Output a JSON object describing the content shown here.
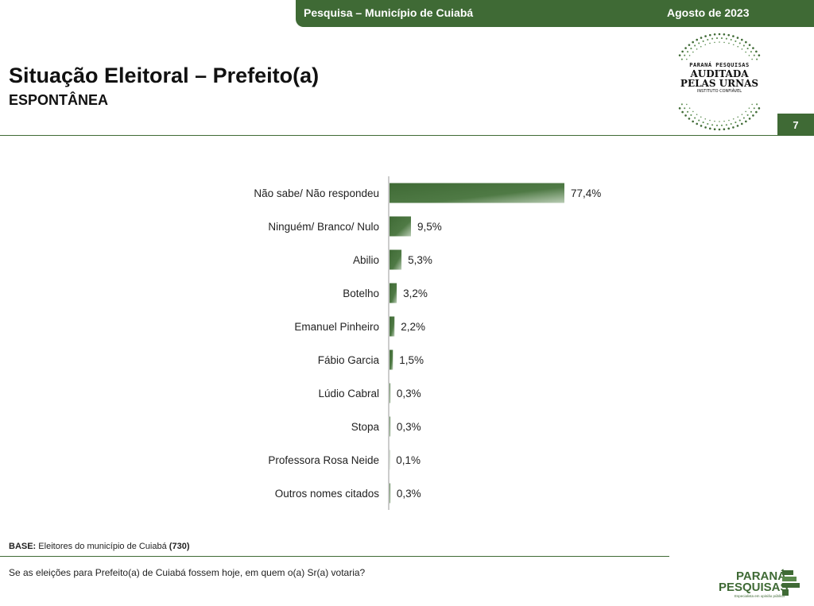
{
  "header": {
    "survey_label": "Pesquisa – Município de Cuiabá",
    "date": "Agosto de 2023",
    "page_number": "7"
  },
  "title": "Situação Eleitoral – Prefeito(a)",
  "subtitle": "ESPONTÂNEA",
  "seal": {
    "line1": "PARANÁ PESQUISAS",
    "line2": "AUDITADA",
    "line3": "PELAS URNAS",
    "line4": "INSTITUTO CONFIÁVEL"
  },
  "colors": {
    "brand_green": "#3f6a35",
    "bar_light": "#ffffff"
  },
  "chart_data": {
    "type": "bar",
    "orientation": "horizontal",
    "title": "",
    "xlabel": "",
    "ylabel": "",
    "xlim": [
      0,
      100
    ],
    "grid": false,
    "categories": [
      "Não sabe/ Não respondeu",
      "Ninguém/ Branco/ Nulo",
      "Abilio",
      "Botelho",
      "Emanuel Pinheiro",
      "Fábio Garcia",
      "Lúdio Cabral",
      "Stopa",
      "Professora Rosa Neide",
      "Outros nomes citados"
    ],
    "values": [
      77.4,
      9.5,
      5.3,
      3.2,
      2.2,
      1.5,
      0.3,
      0.3,
      0.1,
      0.3
    ],
    "value_labels": [
      "77,4%",
      "9,5%",
      "5,3%",
      "3,2%",
      "2,2%",
      "1,5%",
      "0,3%",
      "0,3%",
      "0,1%",
      "0,3%"
    ]
  },
  "footer": {
    "base_label": "BASE:",
    "base_text": "Eleitores do município de Cuiabá",
    "base_count": "(730)",
    "question": "Se as eleições para Prefeito(a) de Cuiabá fossem hoje, em quem o(a) Sr(a) votaria?"
  },
  "logo": {
    "line1": "PARANÁ",
    "line2": "PESQUISAS",
    "tagline": "Especialista em opinião pública"
  }
}
